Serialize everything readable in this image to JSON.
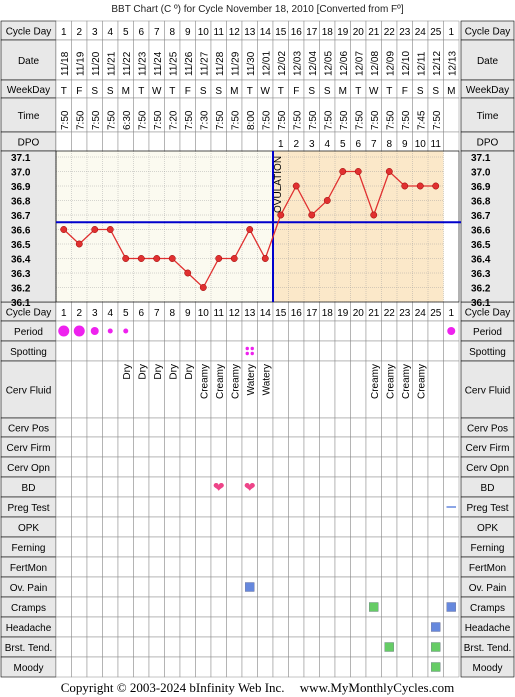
{
  "title": "BBT Chart (C º) for Cycle November 18, 2010  [Converted from Fº]",
  "footer": {
    "copyright": "Copyright © 2003-2024 bInfinity Web Inc.",
    "site": "www.MyMonthlyCycles.com"
  },
  "row_labels": {
    "cycle_day": "Cycle Day",
    "date": "Date",
    "weekday": "WeekDay",
    "time": "Time",
    "dpo": "DPO",
    "period": "Period",
    "spotting": "Spotting",
    "cerv_fluid": "Cerv Fluid",
    "cerv_pos": "Cerv Pos",
    "cerv_firm": "Cerv Firm",
    "cerv_opn": "Cerv Opn",
    "bd": "BD",
    "preg_test": "Preg Test",
    "opk": "OPK",
    "ferning": "Ferning",
    "fertmon": "FertMon",
    "ov_pain": "Ov. Pain",
    "cramps": "Cramps",
    "headache": "Headache",
    "brst_tend": "Brst. Tend.",
    "moody": "Moody"
  },
  "ovulation_label": "OVULATION",
  "colors": {
    "line": "#e03030",
    "ovulation_line": "#0000cc",
    "coverline": "#0000cc",
    "pre_bg": "#fbfaf0",
    "post_bg": "#fbe8c9",
    "period": "#ee22ee",
    "heart": "#ee4488",
    "symptom_green": "#66cc66",
    "symptom_blue": "#6688dd"
  },
  "days": {
    "cycle_day": [
      "1",
      "2",
      "3",
      "4",
      "5",
      "6",
      "7",
      "8",
      "9",
      "10",
      "11",
      "12",
      "13",
      "14",
      "15",
      "16",
      "17",
      "18",
      "19",
      "20",
      "21",
      "22",
      "23",
      "24",
      "25",
      "1"
    ],
    "date": [
      "11/18",
      "11/19",
      "11/20",
      "11/21",
      "11/22",
      "11/23",
      "11/24",
      "11/25",
      "11/26",
      "11/27",
      "11/28",
      "11/29",
      "11/30",
      "12/01",
      "12/02",
      "12/03",
      "12/04",
      "12/05",
      "12/06",
      "12/07",
      "12/08",
      "12/09",
      "12/10",
      "12/11",
      "12/12",
      "12/13"
    ],
    "weekday": [
      "T",
      "F",
      "S",
      "S",
      "M",
      "T",
      "W",
      "T",
      "F",
      "S",
      "S",
      "M",
      "T",
      "W",
      "T",
      "F",
      "S",
      "S",
      "M",
      "T",
      "W",
      "T",
      "F",
      "S",
      "S",
      "M"
    ],
    "time": [
      "7:50",
      "7:50",
      "7:50",
      "7:50",
      "6:30",
      "7:50",
      "7:50",
      "7:20",
      "7:50",
      "7:30",
      "7:50",
      "7:50",
      "8:00",
      "7:50",
      "7:50",
      "7:50",
      "7:50",
      "7:50",
      "7:50",
      "7:50",
      "7:50",
      "7:50",
      "7:50",
      "7:45",
      "7:50",
      ""
    ],
    "dpo": [
      "",
      "",
      "",
      "",
      "",
      "",
      "",
      "",
      "",
      "",
      "",
      "",
      "",
      "",
      "1",
      "2",
      "3",
      "4",
      "5",
      "6",
      "7",
      "8",
      "9",
      "10",
      "11",
      ""
    ],
    "cerv_fluid": [
      "",
      "",
      "",
      "",
      "Dry",
      "Dry",
      "Dry",
      "Dry",
      "Dry",
      "Creamy",
      "Creamy",
      "Creamy",
      "Watery",
      "Watery",
      "",
      "",
      "",
      "",
      "",
      "",
      "Creamy",
      "Creamy",
      "Creamy",
      "Creamy",
      "",
      ""
    ]
  },
  "chart_data": {
    "type": "line",
    "title": "BBT Chart (C º) for Cycle November 18, 2010  [Converted from Fº]",
    "xlabel": "Cycle Day",
    "ylabel": "",
    "x": [
      1,
      2,
      3,
      4,
      5,
      6,
      7,
      8,
      9,
      10,
      11,
      12,
      13,
      14,
      15,
      16,
      17,
      18,
      19,
      20,
      21,
      22,
      23,
      24,
      25
    ],
    "series": [
      {
        "values": [
          36.6,
          36.5,
          36.6,
          36.6,
          36.4,
          36.4,
          36.4,
          36.4,
          36.3,
          36.2,
          36.4,
          36.4,
          36.6,
          36.4,
          36.7,
          36.9,
          36.7,
          36.8,
          37.0,
          37.0,
          36.7,
          37.0,
          36.9,
          36.9,
          36.9
        ]
      }
    ],
    "ylim": [
      36.1,
      37.1
    ],
    "yticks": [
      "37.1",
      "37.0",
      "36.9",
      "36.8",
      "36.7",
      "36.6",
      "36.5",
      "36.4",
      "36.3",
      "36.2",
      "36.1"
    ],
    "coverline": 36.65,
    "ovulation_day": 14,
    "grid": true
  },
  "symptoms": {
    "period": [
      {
        "day": 1,
        "size": "large"
      },
      {
        "day": 2,
        "size": "large"
      },
      {
        "day": 3,
        "size": "medium"
      },
      {
        "day": 4,
        "size": "small"
      },
      {
        "day": 5,
        "size": "small"
      },
      {
        "day": 26,
        "size": "medium"
      }
    ],
    "spotting": [
      13
    ],
    "bd": [
      11,
      13
    ],
    "preg_test": [
      26
    ],
    "ov_pain": [
      13
    ],
    "cramps": [
      {
        "day": 21,
        "color": "green"
      },
      {
        "day": 26,
        "color": "blue"
      }
    ],
    "headache": [
      {
        "day": 25,
        "color": "blue"
      }
    ],
    "brst_tend": [
      {
        "day": 22,
        "color": "green"
      },
      {
        "day": 25,
        "color": "green"
      }
    ],
    "moody": [
      {
        "day": 25,
        "color": "green"
      }
    ]
  }
}
